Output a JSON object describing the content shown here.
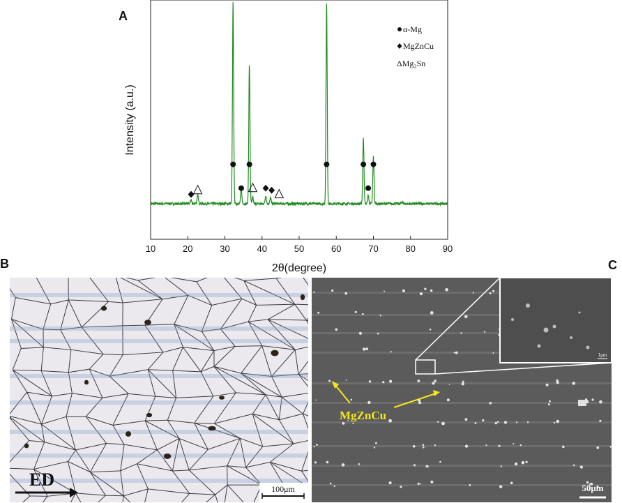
{
  "figure": {
    "panel_a": "A",
    "panel_b": "B",
    "panel_c": "C"
  },
  "chart_data": {
    "type": "line",
    "xlabel": "2θ(degree)",
    "ylabel": "Intensity (a.u.)",
    "xlim": [
      10,
      90
    ],
    "x_ticks": [
      10,
      20,
      30,
      40,
      50,
      60,
      70,
      80,
      90
    ],
    "tick_labels": [
      "10",
      "20",
      "30",
      "40",
      "50",
      "60",
      "70",
      "80",
      "90"
    ],
    "line_color": "#228B22",
    "baseline": 0.08,
    "peaks": [
      {
        "x": 20.9,
        "intensity": 0.1
      },
      {
        "x": 22.7,
        "intensity": 0.13
      },
      {
        "x": 32.2,
        "intensity": 1.05
      },
      {
        "x": 34.4,
        "intensity": 0.16
      },
      {
        "x": 36.6,
        "intensity": 0.75
      },
      {
        "x": 37.5,
        "intensity": 0.11
      },
      {
        "x": 41.0,
        "intensity": 0.12
      },
      {
        "x": 42.3,
        "intensity": 0.11
      },
      {
        "x": 57.4,
        "intensity": 1.05
      },
      {
        "x": 67.3,
        "intensity": 0.4
      },
      {
        "x": 68.6,
        "intensity": 0.12
      },
      {
        "x": 70.0,
        "intensity": 0.31
      },
      {
        "x": 77.8,
        "intensity": 0.09
      }
    ],
    "markers": [
      {
        "x": 20.9,
        "level": 0.045,
        "symbol": "diamond"
      },
      {
        "x": 22.7,
        "level": 0.065,
        "symbol": "triangle"
      },
      {
        "x": 32.2,
        "level": 0.19,
        "symbol": "circle"
      },
      {
        "x": 34.4,
        "level": 0.075,
        "symbol": "circle"
      },
      {
        "x": 36.6,
        "level": 0.19,
        "symbol": "circle"
      },
      {
        "x": 37.5,
        "level": 0.075,
        "symbol": "triangle"
      },
      {
        "x": 41.0,
        "level": 0.075,
        "symbol": "diamond"
      },
      {
        "x": 42.6,
        "level": 0.065,
        "symbol": "diamond"
      },
      {
        "x": 44.6,
        "level": 0.045,
        "symbol": "triangle"
      },
      {
        "x": 57.4,
        "level": 0.19,
        "symbol": "circle"
      },
      {
        "x": 67.3,
        "level": 0.19,
        "symbol": "circle"
      },
      {
        "x": 68.6,
        "level": 0.075,
        "symbol": "circle"
      },
      {
        "x": 70.0,
        "level": 0.19,
        "symbol": "circle"
      }
    ],
    "legend": [
      {
        "symbol": "circle",
        "label": "α-Mg"
      },
      {
        "symbol": "diamond",
        "label": "MgZnCu"
      },
      {
        "symbol": "triangle",
        "label": "ΔMg₂Sn"
      }
    ],
    "legend_position": "top-right"
  },
  "optical_micrograph": {
    "direction_label": "ED",
    "scale_bar": "100μm"
  },
  "sem_micrograph": {
    "phase_label": "MgZnCu",
    "scale_bar": "50μm",
    "inset_scale_bar": "1μm"
  }
}
